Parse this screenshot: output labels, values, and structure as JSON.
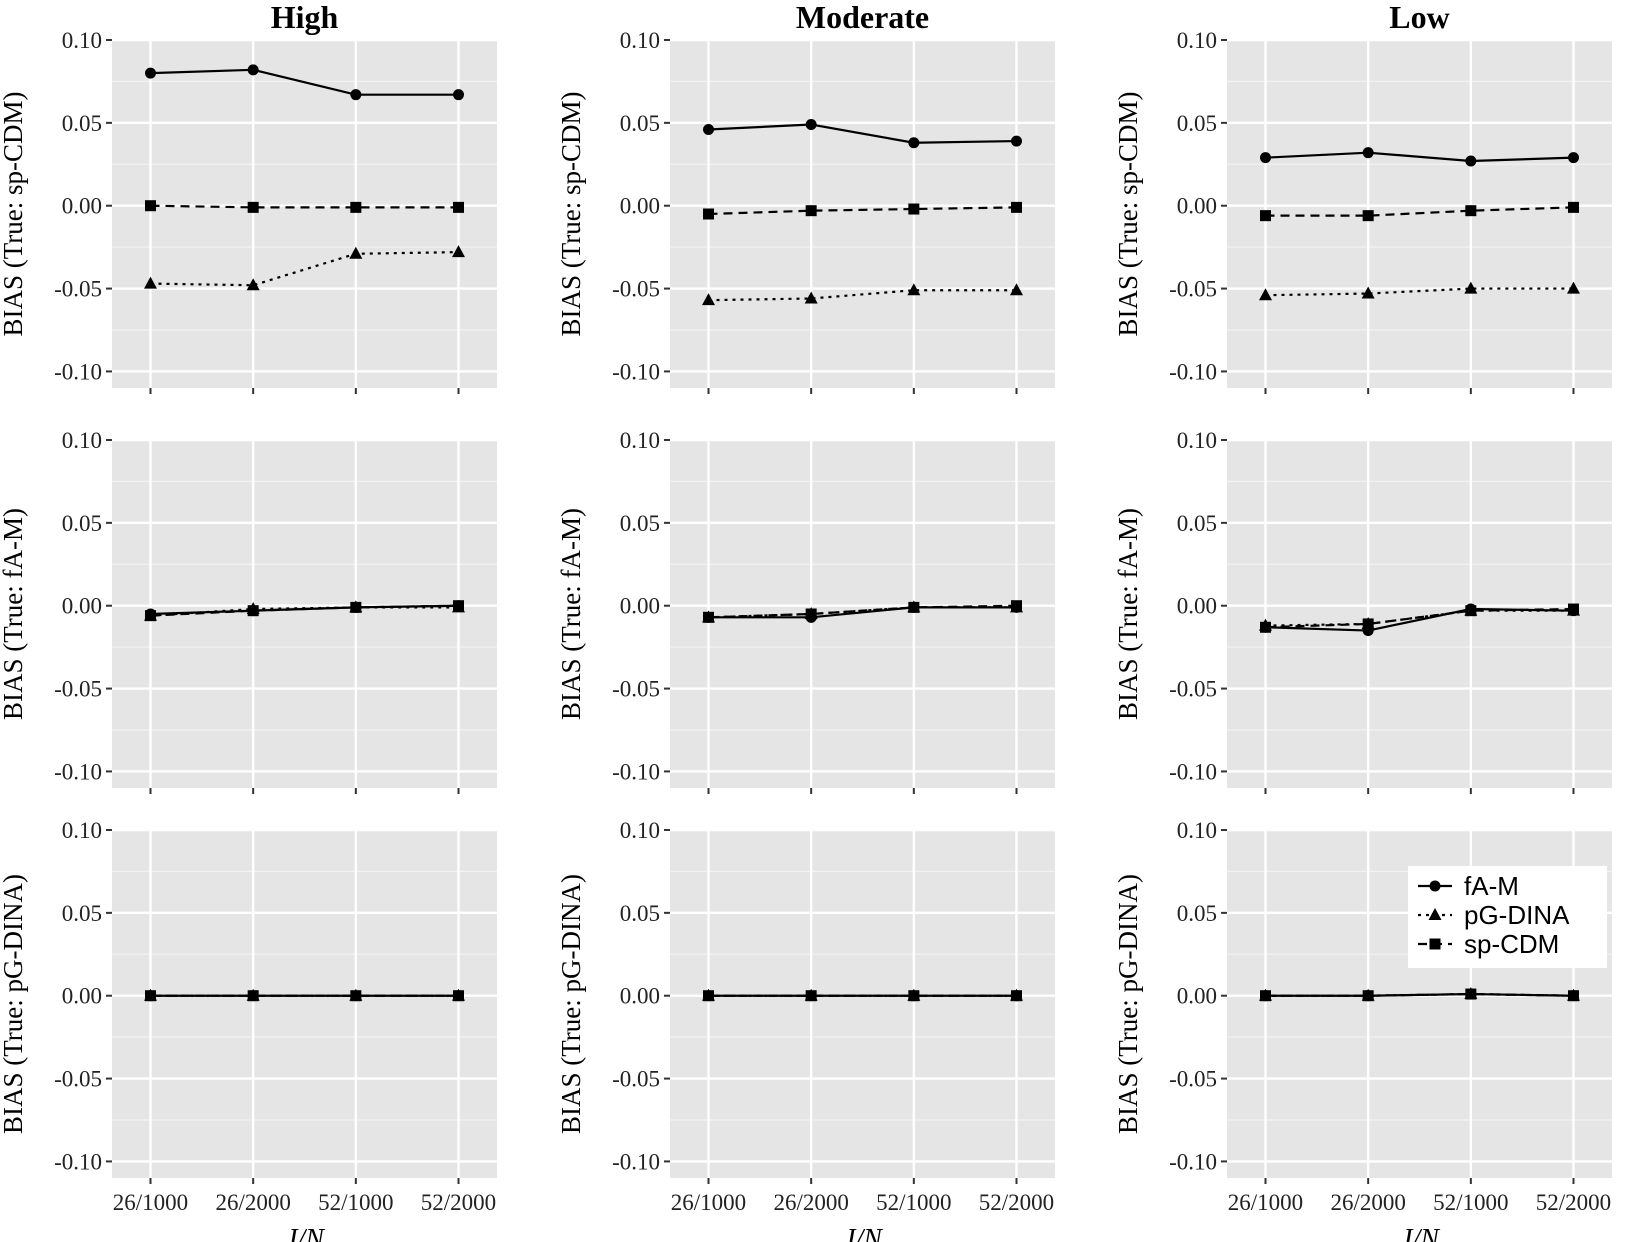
{
  "chart_data": {
    "type": "line",
    "columns": [
      "High",
      "Moderate",
      "Low"
    ],
    "rows": [
      "BIAS (True: sp-CDM)",
      "BIAS (True: fA-M)",
      "BIAS (True: pG-DINA)"
    ],
    "xlabel": "J/N",
    "categories": [
      "26/1000",
      "26/2000",
      "52/1000",
      "52/2000"
    ],
    "ylim": [
      -0.11,
      0.1
    ],
    "yticks": [
      0.1,
      0.05,
      0.0,
      -0.05,
      -0.1
    ],
    "ytick_labels": [
      "0.10",
      "0.05",
      "0.00",
      "-0.05",
      "-0.10"
    ],
    "series_styles": [
      {
        "name": "fA-M",
        "dash": "solid",
        "marker": "circle"
      },
      {
        "name": "pG-DINA",
        "dash": "dotted",
        "marker": "triangle"
      },
      {
        "name": "sp-CDM",
        "dash": "dashed",
        "marker": "square"
      }
    ],
    "legend": {
      "placement": "top-right of bottom-right panel",
      "entries": [
        "fA-M",
        "pG-DINA",
        "sp-CDM"
      ]
    },
    "panels": [
      {
        "row": 0,
        "col": 0,
        "series": [
          {
            "name": "fA-M",
            "values": [
              0.08,
              0.082,
              0.067,
              0.067
            ]
          },
          {
            "name": "pG-DINA",
            "values": [
              -0.047,
              -0.048,
              -0.029,
              -0.028
            ]
          },
          {
            "name": "sp-CDM",
            "values": [
              0.0,
              -0.001,
              -0.001,
              -0.001
            ]
          }
        ]
      },
      {
        "row": 0,
        "col": 1,
        "series": [
          {
            "name": "fA-M",
            "values": [
              0.046,
              0.049,
              0.038,
              0.039
            ]
          },
          {
            "name": "pG-DINA",
            "values": [
              -0.057,
              -0.056,
              -0.051,
              -0.051
            ]
          },
          {
            "name": "sp-CDM",
            "values": [
              -0.005,
              -0.003,
              -0.002,
              -0.001
            ]
          }
        ]
      },
      {
        "row": 0,
        "col": 2,
        "series": [
          {
            "name": "fA-M",
            "values": [
              0.029,
              0.032,
              0.027,
              0.029
            ]
          },
          {
            "name": "pG-DINA",
            "values": [
              -0.054,
              -0.053,
              -0.05,
              -0.05
            ]
          },
          {
            "name": "sp-CDM",
            "values": [
              -0.006,
              -0.006,
              -0.003,
              -0.001
            ]
          }
        ]
      },
      {
        "row": 1,
        "col": 0,
        "series": [
          {
            "name": "fA-M",
            "values": [
              -0.005,
              -0.003,
              -0.001,
              0.0
            ]
          },
          {
            "name": "pG-DINA",
            "values": [
              -0.006,
              -0.002,
              -0.001,
              -0.001
            ]
          },
          {
            "name": "sp-CDM",
            "values": [
              -0.006,
              -0.003,
              -0.001,
              0.0
            ]
          }
        ]
      },
      {
        "row": 1,
        "col": 1,
        "series": [
          {
            "name": "fA-M",
            "values": [
              -0.007,
              -0.007,
              -0.001,
              -0.001
            ]
          },
          {
            "name": "pG-DINA",
            "values": [
              -0.007,
              -0.005,
              -0.001,
              -0.001
            ]
          },
          {
            "name": "sp-CDM",
            "values": [
              -0.007,
              -0.005,
              -0.001,
              0.0
            ]
          }
        ]
      },
      {
        "row": 1,
        "col": 2,
        "series": [
          {
            "name": "fA-M",
            "values": [
              -0.013,
              -0.015,
              -0.002,
              -0.003
            ]
          },
          {
            "name": "pG-DINA",
            "values": [
              -0.012,
              -0.011,
              -0.003,
              -0.003
            ]
          },
          {
            "name": "sp-CDM",
            "values": [
              -0.013,
              -0.011,
              -0.003,
              -0.002
            ]
          }
        ]
      },
      {
        "row": 2,
        "col": 0,
        "series": [
          {
            "name": "fA-M",
            "values": [
              0.0,
              0.0,
              0.0,
              0.0
            ]
          },
          {
            "name": "pG-DINA",
            "values": [
              0.0,
              0.0,
              0.0,
              0.0
            ]
          },
          {
            "name": "sp-CDM",
            "values": [
              0.0,
              0.0,
              0.0,
              0.0
            ]
          }
        ]
      },
      {
        "row": 2,
        "col": 1,
        "series": [
          {
            "name": "fA-M",
            "values": [
              0.0,
              0.0,
              0.0,
              0.0
            ]
          },
          {
            "name": "pG-DINA",
            "values": [
              0.0,
              0.0,
              0.0,
              0.0
            ]
          },
          {
            "name": "sp-CDM",
            "values": [
              0.0,
              0.0,
              0.0,
              0.0
            ]
          }
        ]
      },
      {
        "row": 2,
        "col": 2,
        "series": [
          {
            "name": "fA-M",
            "values": [
              0.0,
              0.0,
              0.001,
              0.0
            ]
          },
          {
            "name": "pG-DINA",
            "values": [
              0.0,
              0.0,
              0.001,
              0.0
            ]
          },
          {
            "name": "sp-CDM",
            "values": [
              0.0,
              0.0,
              0.001,
              0.0
            ]
          }
        ]
      }
    ]
  }
}
